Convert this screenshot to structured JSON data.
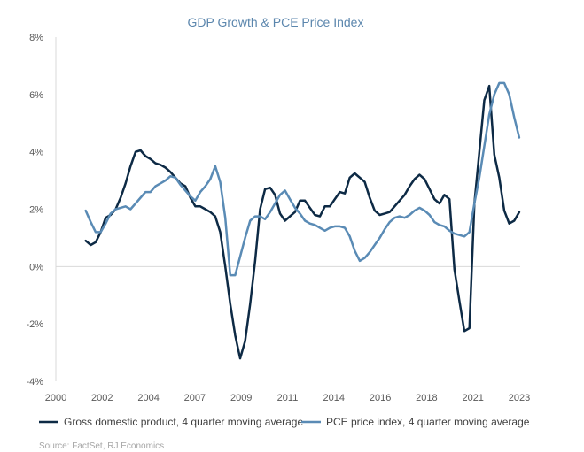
{
  "chart_data": {
    "type": "line",
    "title": "GDP Growth & PCE Price Index",
    "xlabel": "",
    "ylabel": "",
    "xlim": [
      2000,
      2023.3
    ],
    "ylim": [
      -4,
      8
    ],
    "x_ticks": [
      "2000",
      "2002",
      "2004",
      "2007",
      "2009",
      "2011",
      "2014",
      "2016",
      "2018",
      "2021",
      "2023"
    ],
    "y_ticks": [
      "-4%",
      "-2%",
      "0%",
      "2%",
      "4%",
      "6%",
      "8%"
    ],
    "grid": false,
    "legend_position": "bottom",
    "source": "Source: FactSet, RJ Economics",
    "series": [
      {
        "name": "Gross domestic product,  4 quarter moving average",
        "color": "#0d2a45",
        "x": [
          2001.5,
          2001.75,
          2002.0,
          2002.25,
          2002.5,
          2002.75,
          2003.0,
          2003.25,
          2003.5,
          2003.75,
          2004.0,
          2004.25,
          2004.5,
          2004.75,
          2005.0,
          2005.25,
          2005.5,
          2005.75,
          2006.0,
          2006.25,
          2006.5,
          2006.75,
          2007.0,
          2007.25,
          2007.5,
          2007.75,
          2008.0,
          2008.25,
          2008.5,
          2008.75,
          2009.0,
          2009.25,
          2009.5,
          2009.75,
          2010.0,
          2010.25,
          2010.5,
          2010.75,
          2011.0,
          2011.25,
          2011.5,
          2011.75,
          2012.0,
          2012.25,
          2012.5,
          2012.75,
          2013.0,
          2013.25,
          2013.5,
          2013.75,
          2014.0,
          2014.25,
          2014.5,
          2014.75,
          2015.0,
          2015.25,
          2015.5,
          2015.75,
          2016.0,
          2016.25,
          2016.5,
          2016.75,
          2017.0,
          2017.25,
          2017.5,
          2017.75,
          2018.0,
          2018.25,
          2018.5,
          2018.75,
          2019.0,
          2019.25,
          2019.5,
          2019.75,
          2020.0,
          2020.25,
          2020.5,
          2020.75,
          2021.0,
          2021.25,
          2021.5,
          2021.75,
          2022.0,
          2022.25,
          2022.5,
          2022.75,
          2023.0,
          2023.25
        ],
        "values": [
          0.9,
          0.75,
          0.85,
          1.2,
          1.7,
          1.8,
          2.0,
          2.4,
          2.9,
          3.5,
          4.0,
          4.05,
          3.85,
          3.75,
          3.6,
          3.55,
          3.45,
          3.3,
          3.1,
          2.9,
          2.8,
          2.4,
          2.1,
          2.1,
          2.0,
          1.9,
          1.75,
          1.2,
          0.0,
          -1.3,
          -2.4,
          -3.2,
          -2.6,
          -1.3,
          0.2,
          2.0,
          2.7,
          2.75,
          2.5,
          1.85,
          1.6,
          1.75,
          1.9,
          2.3,
          2.3,
          2.05,
          1.8,
          1.75,
          2.1,
          2.1,
          2.35,
          2.6,
          2.55,
          3.1,
          3.25,
          3.1,
          2.95,
          2.4,
          1.95,
          1.8,
          1.85,
          1.9,
          2.1,
          2.3,
          2.5,
          2.8,
          3.05,
          3.2,
          3.05,
          2.7,
          2.35,
          2.2,
          2.5,
          2.35,
          -0.1,
          -1.2,
          -2.25,
          -2.15,
          2.2,
          4.0,
          5.8,
          6.3,
          3.9,
          3.1,
          1.95,
          1.5,
          1.6,
          1.9
        ]
      },
      {
        "name": "PCE price index, 4 quarter moving average",
        "color": "#5a8bb5",
        "x": [
          2001.5,
          2001.75,
          2002.0,
          2002.25,
          2002.5,
          2002.75,
          2003.0,
          2003.25,
          2003.5,
          2003.75,
          2004.0,
          2004.25,
          2004.5,
          2004.75,
          2005.0,
          2005.25,
          2005.5,
          2005.75,
          2006.0,
          2006.25,
          2006.5,
          2006.75,
          2007.0,
          2007.25,
          2007.5,
          2007.75,
          2008.0,
          2008.25,
          2008.5,
          2008.75,
          2009.0,
          2009.25,
          2009.5,
          2009.75,
          2010.0,
          2010.25,
          2010.5,
          2010.75,
          2011.0,
          2011.25,
          2011.5,
          2011.75,
          2012.0,
          2012.25,
          2012.5,
          2012.75,
          2013.0,
          2013.25,
          2013.5,
          2013.75,
          2014.0,
          2014.25,
          2014.5,
          2014.75,
          2015.0,
          2015.25,
          2015.5,
          2015.75,
          2016.0,
          2016.25,
          2016.5,
          2016.75,
          2017.0,
          2017.25,
          2017.5,
          2017.75,
          2018.0,
          2018.25,
          2018.5,
          2018.75,
          2019.0,
          2019.25,
          2019.5,
          2019.75,
          2020.0,
          2020.25,
          2020.5,
          2020.75,
          2021.0,
          2021.25,
          2021.5,
          2021.75,
          2022.0,
          2022.25,
          2022.5,
          2022.75,
          2023.0,
          2023.25
        ],
        "values": [
          1.95,
          1.55,
          1.2,
          1.2,
          1.5,
          1.85,
          2.0,
          2.05,
          2.1,
          2.0,
          2.2,
          2.4,
          2.6,
          2.6,
          2.8,
          2.9,
          3.0,
          3.15,
          3.1,
          2.85,
          2.65,
          2.45,
          2.3,
          2.6,
          2.8,
          3.05,
          3.5,
          2.95,
          1.7,
          -0.3,
          -0.3,
          0.35,
          1.0,
          1.6,
          1.75,
          1.75,
          1.65,
          1.9,
          2.2,
          2.5,
          2.65,
          2.35,
          2.05,
          1.85,
          1.6,
          1.5,
          1.45,
          1.35,
          1.25,
          1.35,
          1.4,
          1.4,
          1.35,
          1.05,
          0.55,
          0.2,
          0.3,
          0.5,
          0.75,
          1.0,
          1.3,
          1.55,
          1.7,
          1.75,
          1.7,
          1.8,
          1.95,
          2.05,
          1.95,
          1.8,
          1.55,
          1.45,
          1.4,
          1.25,
          1.15,
          1.1,
          1.05,
          1.2,
          2.2,
          3.1,
          4.2,
          5.3,
          6.0,
          6.4,
          6.4,
          6.0,
          5.2,
          4.5
        ]
      }
    ]
  }
}
